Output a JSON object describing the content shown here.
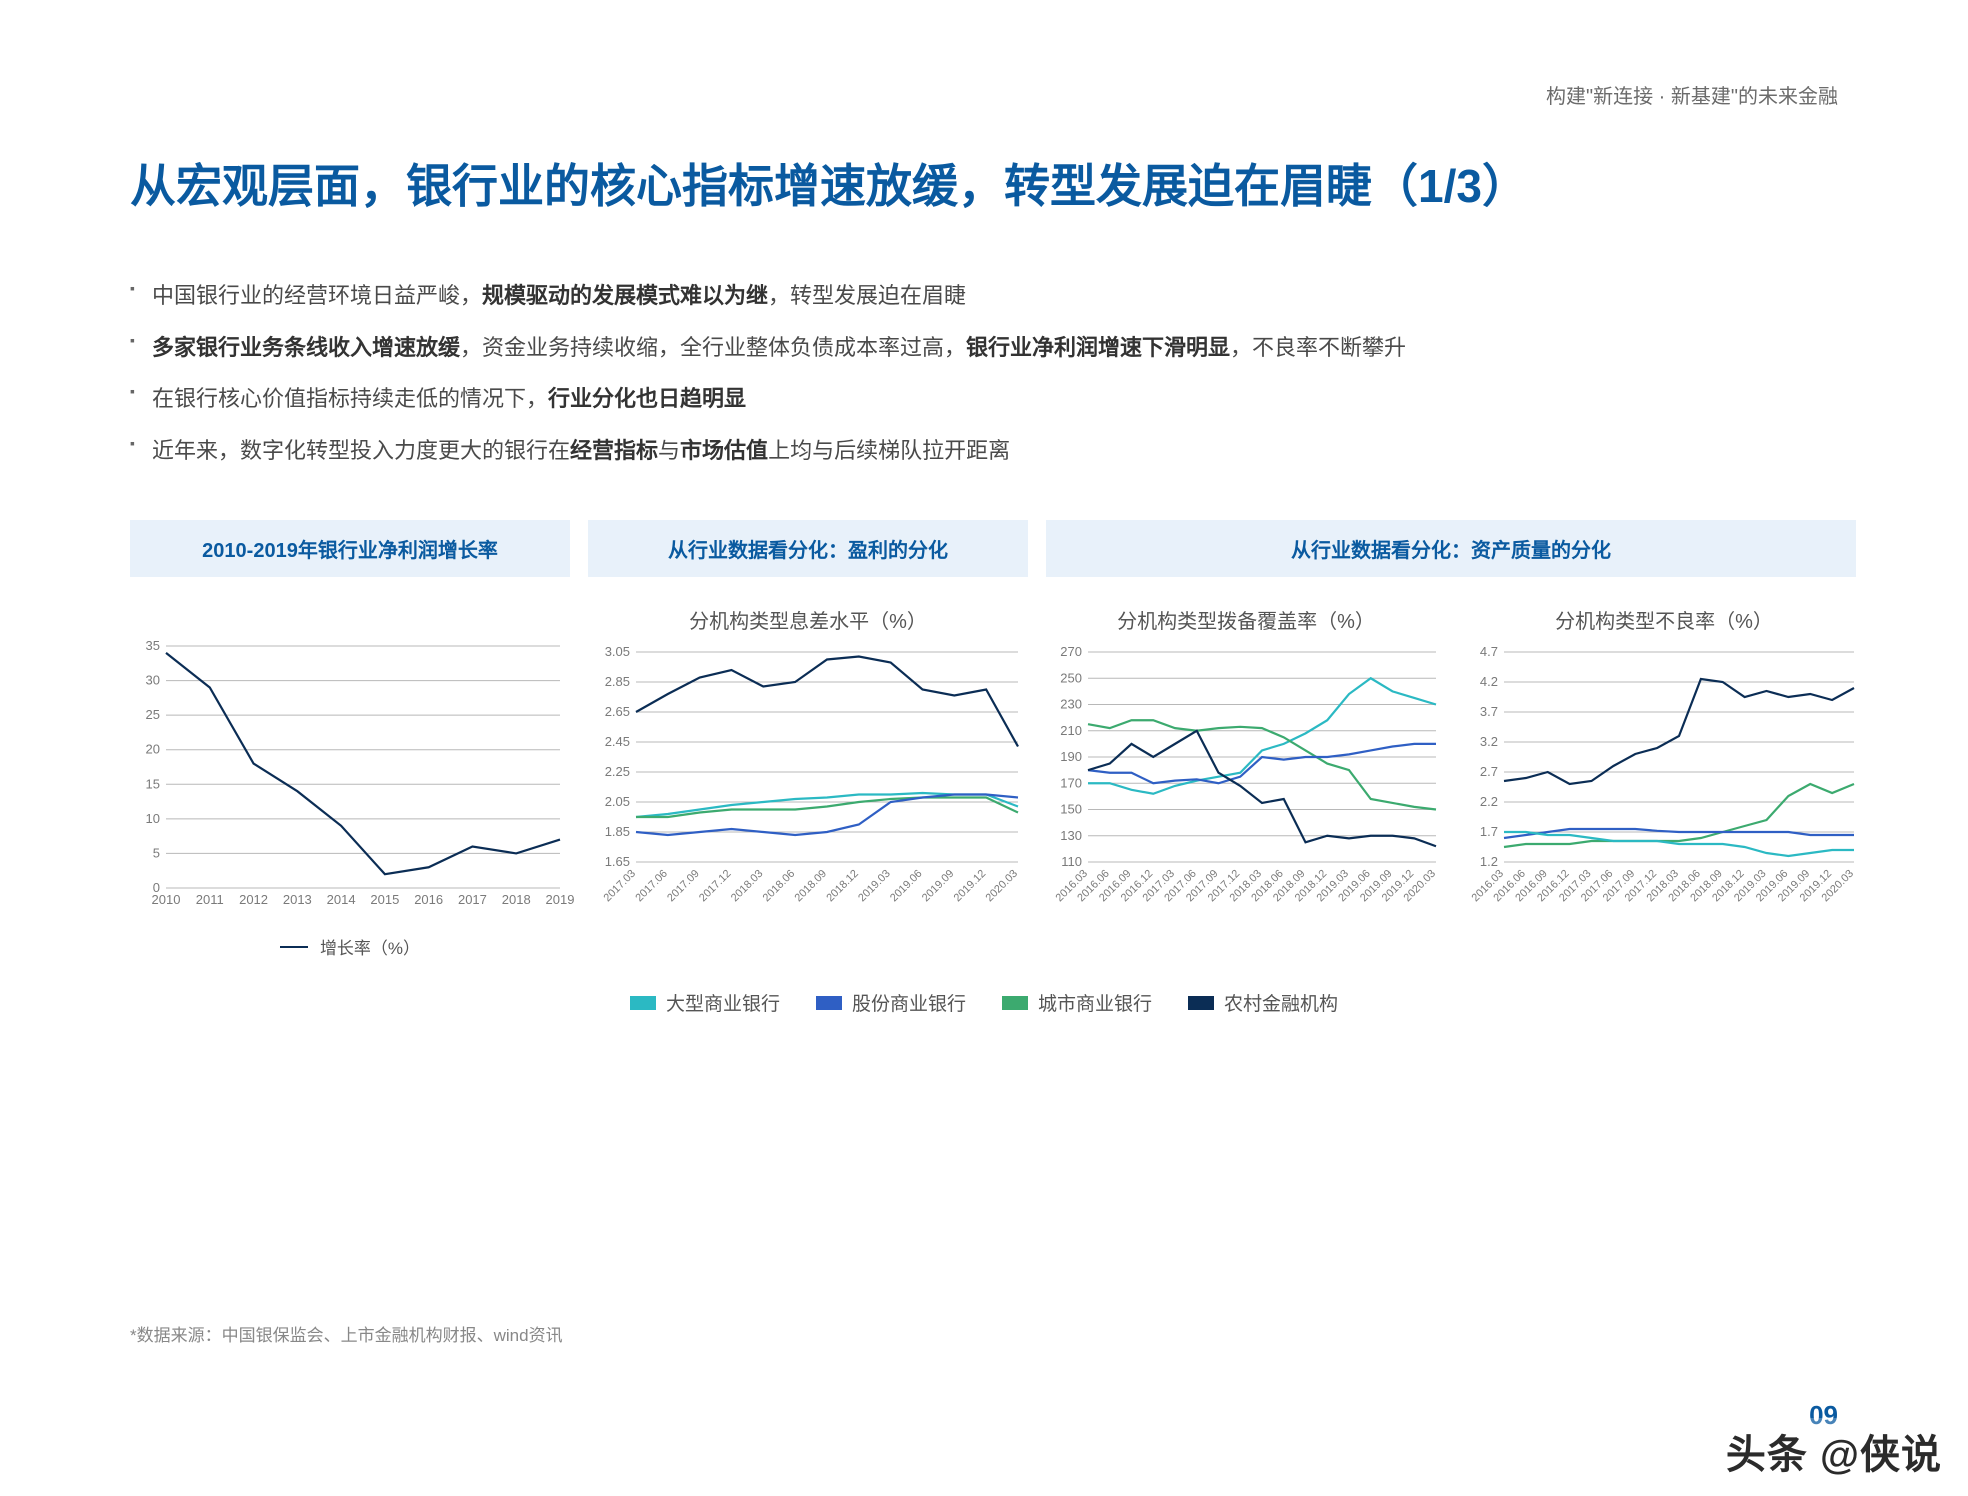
{
  "header_right": "构建\"新连接 · 新基建\"的未来金融",
  "title": "从宏观层面，银行业的核心指标增速放缓，转型发展迫在眉睫（1/3）",
  "bullets": [
    {
      "pre": "中国银行业的经营环境日益严峻，",
      "bold": "规模驱动的发展模式难以为继",
      "post": "，转型发展迫在眉睫"
    },
    {
      "pre": "",
      "bold": "多家银行业务条线收入增速放缓",
      "post": "，资金业务持续收缩，全行业整体负债成本率过高，",
      "bold2": "银行业净利润增速下滑明显",
      "post2": "，不良率不断攀升"
    },
    {
      "pre": "在银行核心价值指标持续走低的情况下，",
      "bold": "行业分化也日趋明显",
      "post": ""
    },
    {
      "pre": "近年来，数字化转型投入力度更大的银行在",
      "bold": "经营指标",
      "mid": "与",
      "bold2": "市场估值",
      "post2": "上均与后续梯队拉开距离"
    }
  ],
  "panel_headers": [
    "2010-2019年银行业净利润增长率",
    "从行业数据看分化：盈利的分化",
    "从行业数据看分化：资产质量的分化"
  ],
  "colors": {
    "large_bank": "#2bb9c3",
    "joint_stock": "#2f5fc4",
    "city_bank": "#3caa6f",
    "rural": "#0b2d55",
    "single_line": "#0b2d55",
    "grid": "#b8b8b8",
    "bg": "#ffffff",
    "header_bg": "#e8f1fa",
    "header_fg": "#0a5aa0"
  },
  "legend_main": [
    {
      "label": "大型商业银行",
      "key": "large_bank"
    },
    {
      "label": "股份商业银行",
      "key": "joint_stock"
    },
    {
      "label": "城市商业银行",
      "key": "city_bank"
    },
    {
      "label": "农村金融机构",
      "key": "rural"
    }
  ],
  "chart1": {
    "type": "line",
    "title": "",
    "x_labels": [
      "2010",
      "2011",
      "2012",
      "2013",
      "2014",
      "2015",
      "2016",
      "2017",
      "2018",
      "2019"
    ],
    "y_ticks": [
      0,
      5,
      10,
      15,
      20,
      25,
      30,
      35
    ],
    "ylim": [
      0,
      35
    ],
    "series": [
      {
        "name": "growth",
        "color_key": "single_line",
        "values": [
          34,
          29,
          18,
          14,
          9,
          2,
          3,
          6,
          5,
          7
        ]
      }
    ],
    "legend_label": "增长率（%）"
  },
  "chart2": {
    "type": "line",
    "title": "分机构类型息差水平（%）",
    "x_labels": [
      "2017.03",
      "2017.06",
      "2017.09",
      "2017.12",
      "2018.03",
      "2018.06",
      "2018.09",
      "2018.12",
      "2019.03",
      "2019.06",
      "2019.09",
      "2019.12",
      "2020.03"
    ],
    "y_ticks": [
      1.65,
      1.85,
      2.05,
      2.25,
      2.45,
      2.65,
      2.85,
      3.05
    ],
    "ylim": [
      1.65,
      3.05
    ],
    "series": [
      {
        "name": "rural",
        "color_key": "rural",
        "values": [
          2.65,
          2.77,
          2.88,
          2.93,
          2.82,
          2.85,
          3.0,
          3.02,
          2.98,
          2.8,
          2.76,
          2.8,
          2.42
        ]
      },
      {
        "name": "large",
        "color_key": "large_bank",
        "values": [
          1.95,
          1.97,
          2.0,
          2.03,
          2.05,
          2.07,
          2.08,
          2.1,
          2.1,
          2.11,
          2.1,
          2.1,
          2.02
        ]
      },
      {
        "name": "city",
        "color_key": "city_bank",
        "values": [
          1.95,
          1.95,
          1.98,
          2.0,
          2.0,
          2.0,
          2.02,
          2.05,
          2.07,
          2.08,
          2.08,
          2.08,
          1.98
        ]
      },
      {
        "name": "joint",
        "color_key": "joint_stock",
        "values": [
          1.85,
          1.83,
          1.85,
          1.87,
          1.85,
          1.83,
          1.85,
          1.9,
          2.05,
          2.08,
          2.1,
          2.1,
          2.08
        ]
      }
    ]
  },
  "chart3": {
    "type": "line",
    "title": "分机构类型拨备覆盖率（%）",
    "x_labels": [
      "2016.03",
      "2016.06",
      "2016.09",
      "2016.12",
      "2017.03",
      "2017.06",
      "2017.09",
      "2017.12",
      "2018.03",
      "2018.06",
      "2018.09",
      "2018.12",
      "2019.03",
      "2019.06",
      "2019.09",
      "2019.12",
      "2020.03"
    ],
    "y_ticks": [
      110,
      130,
      150,
      170,
      190,
      210,
      230,
      250,
      270
    ],
    "ylim": [
      110,
      270
    ],
    "series": [
      {
        "name": "large",
        "color_key": "large_bank",
        "values": [
          170,
          170,
          165,
          162,
          168,
          172,
          175,
          178,
          195,
          200,
          208,
          218,
          238,
          250,
          240,
          235,
          230
        ]
      },
      {
        "name": "city",
        "color_key": "city_bank",
        "values": [
          215,
          212,
          218,
          218,
          212,
          210,
          212,
          213,
          212,
          205,
          195,
          185,
          180,
          158,
          155,
          152,
          150
        ]
      },
      {
        "name": "joint",
        "color_key": "joint_stock",
        "values": [
          180,
          178,
          178,
          170,
          172,
          173,
          170,
          175,
          190,
          188,
          190,
          190,
          192,
          195,
          198,
          200,
          200
        ]
      },
      {
        "name": "rural",
        "color_key": "rural",
        "values": [
          180,
          185,
          200,
          190,
          200,
          210,
          178,
          168,
          155,
          158,
          125,
          130,
          128,
          130,
          130,
          128,
          122
        ]
      }
    ]
  },
  "chart4": {
    "type": "line",
    "title": "分机构类型不良率（%）",
    "x_labels": [
      "2016.03",
      "2016.06",
      "2016.09",
      "2016.12",
      "2017.03",
      "2017.06",
      "2017.09",
      "2017.12",
      "2018.03",
      "2018.06",
      "2018.09",
      "2018.12",
      "2019.03",
      "2019.06",
      "2019.09",
      "2019.12",
      "2020.03"
    ],
    "y_ticks": [
      1.2,
      1.7,
      2.2,
      2.7,
      3.2,
      3.7,
      4.2,
      4.7
    ],
    "ylim": [
      1.2,
      4.7
    ],
    "series": [
      {
        "name": "rural",
        "color_key": "rural",
        "values": [
          2.55,
          2.6,
          2.7,
          2.5,
          2.55,
          2.8,
          3.0,
          3.1,
          3.3,
          4.25,
          4.2,
          3.95,
          4.05,
          3.95,
          4.0,
          3.9,
          4.1
        ]
      },
      {
        "name": "city",
        "color_key": "city_bank",
        "values": [
          1.45,
          1.5,
          1.5,
          1.5,
          1.55,
          1.55,
          1.55,
          1.55,
          1.55,
          1.6,
          1.7,
          1.8,
          1.9,
          2.3,
          2.5,
          2.35,
          2.5
        ]
      },
      {
        "name": "joint",
        "color_key": "joint_stock",
        "values": [
          1.6,
          1.65,
          1.7,
          1.75,
          1.75,
          1.75,
          1.75,
          1.72,
          1.7,
          1.7,
          1.7,
          1.7,
          1.7,
          1.7,
          1.65,
          1.65,
          1.65
        ]
      },
      {
        "name": "large",
        "color_key": "large_bank",
        "values": [
          1.7,
          1.7,
          1.65,
          1.65,
          1.6,
          1.55,
          1.55,
          1.55,
          1.5,
          1.5,
          1.5,
          1.45,
          1.35,
          1.3,
          1.35,
          1.4,
          1.4
        ]
      }
    ]
  },
  "footnote": "*数据来源：中国银保监会、上市金融机构财报、wind资讯",
  "page_number": "09",
  "watermark": "头条 @侠说"
}
